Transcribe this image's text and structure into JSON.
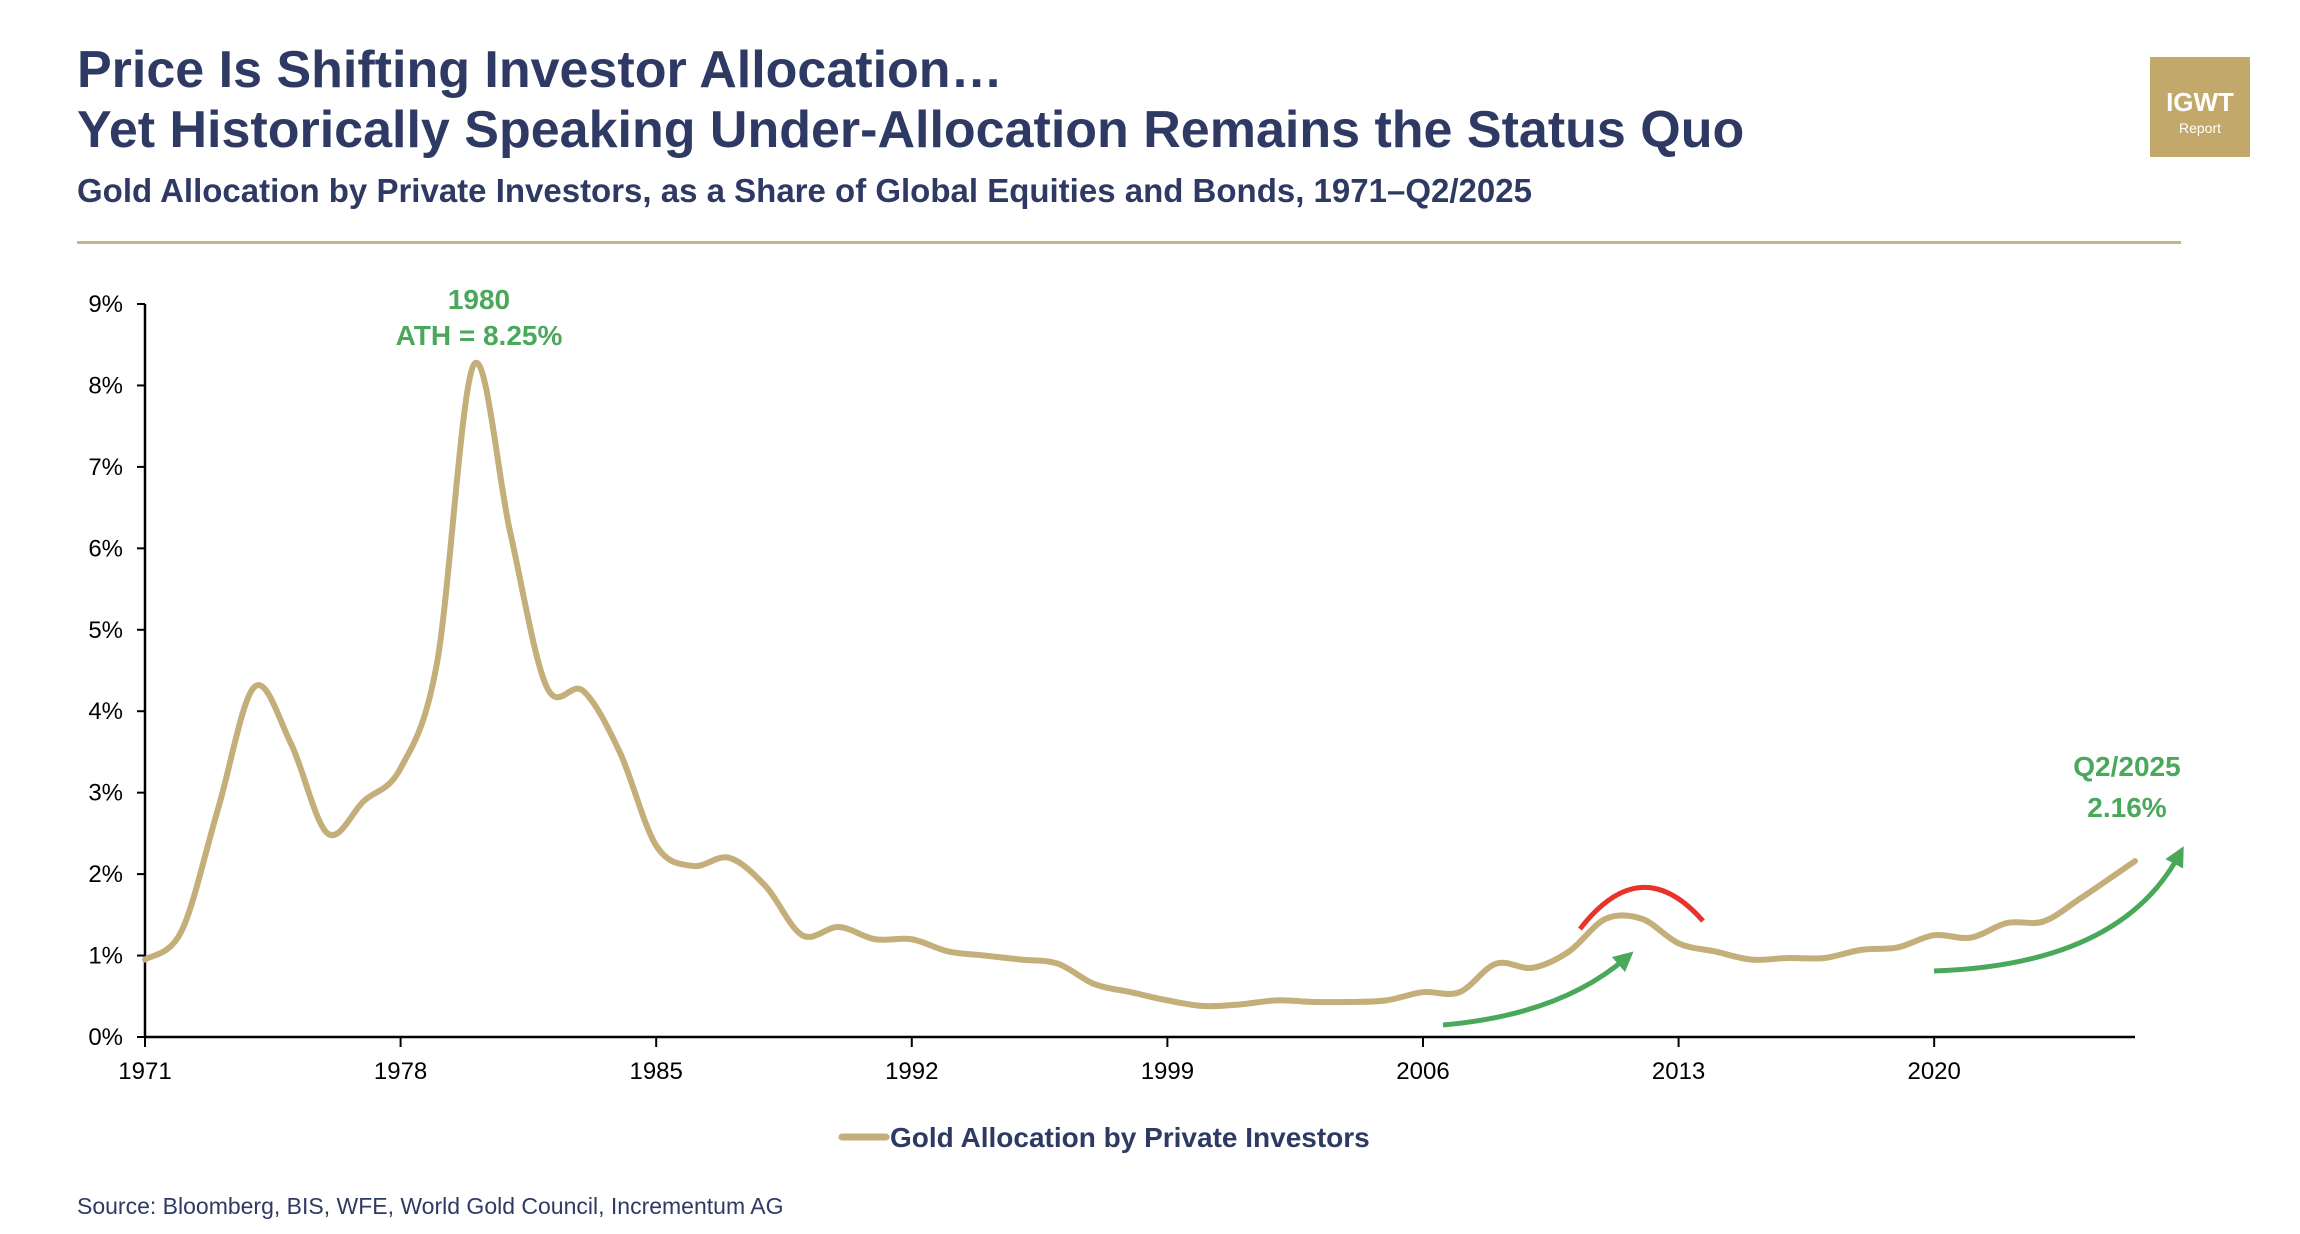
{
  "header": {
    "title_line1": "Price Is Shifting Investor Allocation…",
    "title_line2": "Yet Historically Speaking Under-Allocation Remains the Status Quo",
    "subtitle": "Gold Allocation by Private Investors, as a Share of Global Equities and Bonds, 1971–Q2/2025"
  },
  "logo": {
    "name": "IGWT",
    "sub": "Report"
  },
  "source": "Source: Bloomberg, BIS, WFE, World Gold Council, Incrementum AG",
  "colors": {
    "line": "#c4ae7a",
    "title": "#2e3a63",
    "annotation": "#4aa85a",
    "highlight": "#e8322a",
    "logo": "#c2a96b"
  },
  "chart_data": {
    "type": "line",
    "title": "Gold Allocation by Private Investors, as a Share of Global Equities and Bonds, 1971–Q2/2025",
    "xlabel": "",
    "ylabel": "",
    "xlim": [
      1971,
      2025.5
    ],
    "ylim": [
      0,
      9
    ],
    "y_ticks": [
      "0%",
      "1%",
      "2%",
      "3%",
      "4%",
      "5%",
      "6%",
      "7%",
      "8%",
      "9%"
    ],
    "x_ticks": [
      "1971",
      "1978",
      "1985",
      "1992",
      "1999",
      "2006",
      "2013",
      "2020"
    ],
    "x_tick_values": [
      1971,
      1978,
      1985,
      1992,
      1999,
      2006,
      2013,
      2020
    ],
    "grid": false,
    "legend": {
      "position": "bottom",
      "entries": [
        "Gold Allocation by Private Investors"
      ]
    },
    "annotations": [
      {
        "line1": "1980",
        "line2": "ATH = 8.25%"
      },
      {
        "line1": "Q2/2025",
        "line2": "2.16%"
      }
    ],
    "series": [
      {
        "name": "Gold Allocation by Private Investors",
        "x": [
          1971,
          1972,
          1973,
          1974,
          1975,
          1976,
          1977,
          1978,
          1979,
          1980,
          1981,
          1982,
          1983,
          1984,
          1985,
          1986,
          1987,
          1988,
          1989,
          1990,
          1991,
          1992,
          1993,
          1994,
          1995,
          1996,
          1997,
          1998,
          1999,
          2000,
          2001,
          2002,
          2003,
          2004,
          2005,
          2006,
          2007,
          2008,
          2009,
          2010,
          2011,
          2012,
          2013,
          2014,
          2015,
          2016,
          2017,
          2018,
          2019,
          2020,
          2021,
          2022,
          2023,
          2024,
          2025.5
        ],
        "values": [
          0.95,
          1.3,
          2.8,
          4.3,
          3.6,
          2.5,
          2.9,
          3.3,
          4.6,
          8.25,
          6.2,
          4.3,
          4.25,
          3.5,
          2.35,
          2.1,
          2.2,
          1.85,
          1.25,
          1.35,
          1.2,
          1.2,
          1.05,
          1.0,
          0.95,
          0.9,
          0.65,
          0.55,
          0.45,
          0.38,
          0.4,
          0.45,
          0.43,
          0.43,
          0.45,
          0.55,
          0.55,
          0.9,
          0.85,
          1.05,
          1.45,
          1.45,
          1.15,
          1.05,
          0.95,
          0.97,
          0.97,
          1.07,
          1.1,
          1.25,
          1.22,
          1.4,
          1.42,
          1.7,
          2.16
        ]
      }
    ]
  }
}
